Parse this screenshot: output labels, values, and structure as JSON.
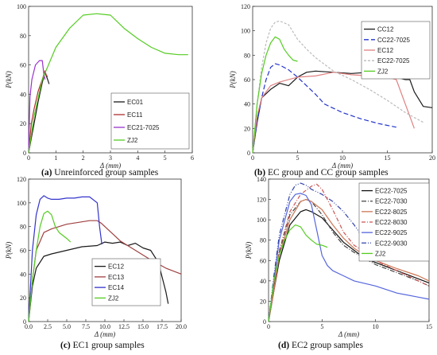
{
  "figure": {
    "captions": [
      {
        "letter": "(a)",
        "text": "Unreinforced group samples"
      },
      {
        "letter": "(b)",
        "text": "EC group and CC group samples"
      },
      {
        "letter": "(c)",
        "text": "EC1 group samples"
      },
      {
        "letter": "(d)",
        "text": "EC2 group samples"
      }
    ]
  },
  "chart_data": [
    {
      "type": "line",
      "panel": "a",
      "xlabel": "Δ (mm)",
      "ylabel": "P(kN)",
      "xlim": [
        0,
        6
      ],
      "ylim": [
        0,
        100
      ],
      "xticks": [
        0,
        1,
        2,
        3,
        4,
        5,
        6
      ],
      "yticks": [
        0,
        20,
        40,
        60,
        80,
        100
      ],
      "legend_position": "lower-right",
      "series": [
        {
          "name": "EC01",
          "color": "#1a1a1a",
          "dash": "",
          "x": [
            0,
            0.1,
            0.2,
            0.35,
            0.5,
            0.6,
            0.7,
            0.75
          ],
          "y": [
            0,
            10,
            20,
            35,
            48,
            55,
            50,
            47
          ]
        },
        {
          "name": "EC11",
          "color": "#b03030",
          "dash": "",
          "x": [
            0,
            0.1,
            0.2,
            0.35,
            0.5,
            0.6,
            0.65,
            0.7
          ],
          "y": [
            0,
            20,
            30,
            42,
            50,
            56,
            53,
            52
          ]
        },
        {
          "name": "EC21-7025",
          "color": "#9933cc",
          "dash": "",
          "x": [
            0,
            0.05,
            0.12,
            0.25,
            0.4,
            0.5,
            0.55,
            0.6
          ],
          "y": [
            0,
            38,
            50,
            60,
            63,
            63,
            55,
            50
          ]
        },
        {
          "name": "ZJ2",
          "color": "#55cc22",
          "dash": "",
          "x": [
            0,
            0.2,
            0.5,
            1.0,
            1.5,
            2.0,
            2.5,
            3.0,
            3.5,
            4.0,
            4.5,
            5.0,
            5.5,
            5.85
          ],
          "y": [
            0,
            25,
            50,
            72,
            85,
            94,
            95,
            94,
            85,
            78,
            72,
            68,
            67,
            67
          ]
        }
      ]
    },
    {
      "type": "line",
      "panel": "b",
      "xlabel": "Δ (mm)",
      "ylabel": "P(kN)",
      "xlim": [
        0,
        20
      ],
      "ylim": [
        0,
        120
      ],
      "xticks": [
        0,
        5,
        10,
        15,
        20
      ],
      "yticks": [
        0,
        20,
        40,
        60,
        80,
        100,
        120
      ],
      "legend_position": "top-right",
      "series": [
        {
          "name": "CC12",
          "color": "#1a1a1a",
          "dash": "",
          "x": [
            0,
            0.5,
            1,
            2,
            3,
            4,
            5,
            6,
            7,
            9,
            11,
            13,
            15,
            17,
            17.5,
            18,
            19,
            20
          ],
          "y": [
            0,
            25,
            45,
            52,
            57,
            55,
            62,
            66,
            67,
            66,
            65,
            66,
            64,
            60,
            60,
            50,
            38,
            37
          ]
        },
        {
          "name": "CC22-7025",
          "color": "#2233cc",
          "dash": "6,3",
          "x": [
            0,
            0.5,
            1,
            1.5,
            2,
            2.5,
            3,
            4,
            5,
            6,
            7,
            8,
            10,
            12,
            14,
            16
          ],
          "y": [
            0,
            25,
            45,
            60,
            70,
            73,
            72,
            68,
            62,
            55,
            48,
            40,
            33,
            28,
            24,
            21
          ]
        },
        {
          "name": "EC12",
          "color": "#e08080",
          "dash": "",
          "x": [
            0,
            0.5,
            1,
            2,
            3,
            5,
            7,
            9,
            11,
            13,
            15,
            16,
            17,
            18
          ],
          "y": [
            0,
            30,
            45,
            55,
            58,
            62,
            63,
            66,
            64,
            63,
            62,
            60,
            40,
            20
          ]
        },
        {
          "name": "EC22-7025",
          "color": "#bbbbbb",
          "dash": "3,2",
          "x": [
            0,
            0.5,
            1,
            1.5,
            2,
            2.5,
            3,
            4,
            5,
            6,
            7,
            9,
            11,
            13,
            15,
            17,
            19
          ],
          "y": [
            0,
            40,
            70,
            90,
            102,
            107,
            108,
            105,
            93,
            85,
            78,
            67,
            60,
            52,
            43,
            33,
            25
          ]
        },
        {
          "name": "ZJ2",
          "color": "#55cc22",
          "dash": "",
          "x": [
            0,
            0.5,
            1,
            1.5,
            2,
            2.5,
            3,
            3.5,
            4,
            4.5,
            5
          ],
          "y": [
            0,
            40,
            65,
            80,
            90,
            95,
            93,
            85,
            80,
            76,
            75
          ]
        }
      ]
    },
    {
      "type": "line",
      "panel": "c",
      "xlabel": "Δ (mm)",
      "ylabel": "P(kN)",
      "xlim": [
        0,
        20
      ],
      "ylim": [
        0,
        120
      ],
      "xticks": [
        0,
        2.5,
        5,
        7.5,
        10,
        12.5,
        15,
        17.5,
        20
      ],
      "xticklabels": [
        "0.0",
        "2.5",
        "5.0",
        "7.5",
        "10.0",
        "12.5",
        "15.0",
        "17.5",
        "20.0"
      ],
      "yticks": [
        0,
        20,
        40,
        60,
        80,
        100,
        120
      ],
      "legend_position": "lower-right",
      "series": [
        {
          "name": "EC12",
          "color": "#1a1a1a",
          "dash": "",
          "x": [
            0,
            0.5,
            1,
            2,
            3,
            5,
            7,
            9,
            10,
            11,
            12,
            13,
            14,
            15,
            16,
            17,
            18,
            18.3
          ],
          "y": [
            0,
            30,
            45,
            55,
            57,
            60,
            63,
            64,
            67,
            66,
            67,
            64,
            66,
            62,
            60,
            50,
            25,
            15
          ]
        },
        {
          "name": "EC13",
          "color": "#a04040",
          "dash": "",
          "x": [
            0,
            0.5,
            1,
            2,
            3,
            5,
            7,
            8,
            9,
            9.5,
            10,
            11,
            12,
            14,
            16,
            18,
            20
          ],
          "y": [
            0,
            35,
            60,
            75,
            78,
            82,
            84,
            85,
            85,
            83,
            80,
            74,
            68,
            60,
            52,
            45,
            40
          ]
        },
        {
          "name": "EC14",
          "color": "#3333cc",
          "dash": "",
          "x": [
            0,
            0.5,
            1,
            1.5,
            2,
            2.5,
            3,
            4,
            5,
            6,
            7,
            8,
            9,
            9.3,
            9.6
          ],
          "y": [
            0,
            60,
            90,
            103,
            106,
            104,
            103,
            103,
            104,
            104,
            105,
            105,
            100,
            80,
            65
          ]
        },
        {
          "name": "ZJ2",
          "color": "#55cc22",
          "dash": "",
          "x": [
            0,
            0.5,
            1,
            1.5,
            2,
            2.5,
            3,
            3.5,
            4,
            5,
            5.5
          ],
          "y": [
            0,
            35,
            60,
            80,
            91,
            93,
            90,
            80,
            75,
            70,
            67
          ]
        }
      ]
    },
    {
      "type": "line",
      "panel": "d",
      "xlabel": "Δ (mm)",
      "ylabel": "P(kN)",
      "xlim": [
        0,
        15
      ],
      "ylim": [
        0,
        140
      ],
      "xticks": [
        0,
        5,
        10,
        15
      ],
      "yticks": [
        0,
        20,
        40,
        60,
        80,
        100,
        120,
        140
      ],
      "legend_position": "top-right",
      "series": [
        {
          "name": "EC22-7025",
          "color": "#111111",
          "dash": "",
          "x": [
            0,
            0.5,
            1,
            2,
            3,
            3.5,
            4,
            5,
            6,
            7,
            8,
            9,
            10,
            12,
            14,
            15
          ],
          "y": [
            0,
            30,
            60,
            95,
            108,
            110,
            108,
            102,
            90,
            78,
            70,
            62,
            58,
            50,
            42,
            38
          ]
        },
        {
          "name": "EC22-7030",
          "color": "#444444",
          "dash": "6,2,1,2",
          "x": [
            0,
            0.5,
            1,
            2,
            3,
            3.5,
            4,
            5,
            6,
            7,
            8,
            9,
            10,
            12,
            14,
            15
          ],
          "y": [
            0,
            35,
            68,
            105,
            118,
            120,
            118,
            105,
            88,
            75,
            68,
            62,
            56,
            48,
            40,
            35
          ]
        },
        {
          "name": "EC22-8025",
          "color": "#cc7755",
          "dash": "",
          "x": [
            0,
            0.5,
            1,
            2,
            3,
            3.5,
            4,
            5,
            6,
            7,
            8,
            9,
            10,
            12,
            14,
            15
          ],
          "y": [
            0,
            30,
            65,
            100,
            118,
            120,
            118,
            110,
            95,
            82,
            72,
            65,
            60,
            52,
            45,
            40
          ]
        },
        {
          "name": "EC22-8030",
          "color": "#cc5555",
          "dash": "5,2,1,2",
          "x": [
            0,
            0.5,
            1,
            2,
            3,
            4,
            4.5,
            5,
            6,
            7,
            8,
            9,
            10,
            12,
            14,
            15
          ],
          "y": [
            0,
            35,
            70,
            108,
            125,
            133,
            135,
            130,
            110,
            88,
            75,
            68,
            60,
            50,
            40,
            35
          ]
        },
        {
          "name": "EC22-9025",
          "color": "#5566dd",
          "dash": "",
          "x": [
            0,
            0.5,
            1,
            2,
            2.5,
            3,
            3.5,
            4,
            4.5,
            5,
            5.5,
            6,
            7,
            8,
            10,
            12,
            14,
            15
          ],
          "y": [
            0,
            40,
            80,
            118,
            125,
            126,
            124,
            115,
            90,
            65,
            55,
            50,
            45,
            40,
            35,
            28,
            24,
            22
          ]
        },
        {
          "name": "EC22-9030",
          "color": "#3344aa",
          "dash": "6,2,1,2,1,2",
          "x": [
            0,
            0.5,
            1,
            2,
            2.5,
            3,
            3.5,
            4,
            5,
            6,
            7,
            8,
            9,
            10,
            11
          ],
          "y": [
            0,
            45,
            85,
            125,
            134,
            136,
            134,
            130,
            125,
            118,
            108,
            95,
            80,
            70,
            60
          ]
        },
        {
          "name": "ZJ2",
          "color": "#55cc22",
          "dash": "",
          "x": [
            0,
            0.5,
            1,
            1.5,
            2,
            2.5,
            3,
            3.5,
            4,
            4.5,
            5,
            5.5
          ],
          "y": [
            0,
            40,
            65,
            80,
            90,
            95,
            93,
            85,
            80,
            76,
            75,
            73
          ]
        }
      ]
    }
  ]
}
